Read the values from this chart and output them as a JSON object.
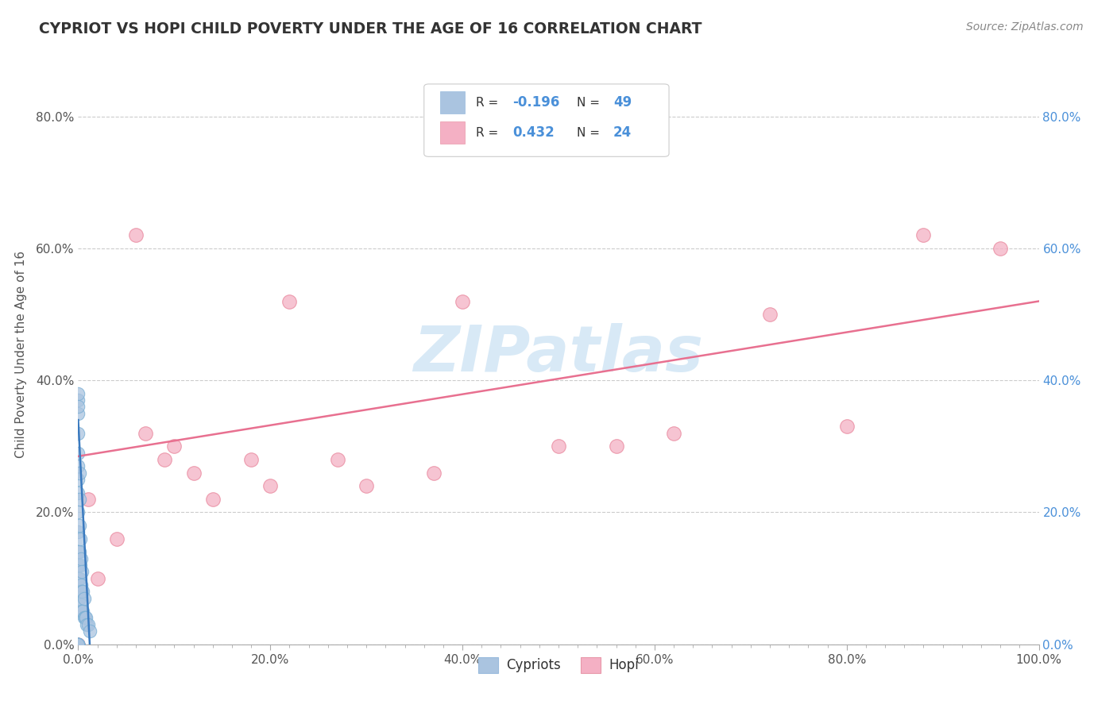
{
  "title": "CYPRIOT VS HOPI CHILD POVERTY UNDER THE AGE OF 16 CORRELATION CHART",
  "source": "Source: ZipAtlas.com",
  "ylabel": "Child Poverty Under the Age of 16",
  "watermark": "ZIPatlas",
  "xlim": [
    0.0,
    1.0
  ],
  "ylim": [
    0.0,
    0.88
  ],
  "xtick_labels": [
    "0.0%",
    "",
    "",
    "",
    "",
    "",
    "",
    "",
    "",
    "",
    "20.0%",
    "",
    "",
    "",
    "",
    "",
    "",
    "",
    "",
    "",
    "40.0%",
    "",
    "",
    "",
    "",
    "",
    "",
    "",
    "",
    "",
    "60.0%",
    "",
    "",
    "",
    "",
    "",
    "",
    "",
    "",
    "",
    "80.0%",
    "",
    "",
    "",
    "",
    "",
    "",
    "",
    "",
    "",
    "100.0%"
  ],
  "xtick_vals": [
    0.0,
    0.02,
    0.04,
    0.06,
    0.08,
    0.1,
    0.12,
    0.14,
    0.16,
    0.18,
    0.2,
    0.22,
    0.24,
    0.26,
    0.28,
    0.3,
    0.32,
    0.34,
    0.36,
    0.38,
    0.4,
    0.42,
    0.44,
    0.46,
    0.48,
    0.5,
    0.52,
    0.54,
    0.56,
    0.58,
    0.6,
    0.62,
    0.64,
    0.66,
    0.68,
    0.7,
    0.72,
    0.74,
    0.76,
    0.78,
    0.8,
    0.82,
    0.84,
    0.86,
    0.88,
    0.9,
    0.92,
    0.94,
    0.96,
    0.98,
    1.0
  ],
  "ytick_labels": [
    "0.0%",
    "20.0%",
    "40.0%",
    "60.0%",
    "80.0%"
  ],
  "ytick_vals": [
    0.0,
    0.2,
    0.4,
    0.6,
    0.8
  ],
  "cypriot_color": "#aac4e0",
  "hopi_color": "#f4b0c4",
  "cypriot_edge_color": "#7aafd4",
  "hopi_edge_color": "#e8849a",
  "cypriot_line_color": "#3a7abf",
  "hopi_line_color": "#e87090",
  "grid_color": "#cccccc",
  "R_cypriot": -0.196,
  "N_cypriot": 49,
  "R_hopi": 0.432,
  "N_hopi": 24,
  "legend_color": "#4a90d9",
  "cypriot_scatter_x": [
    0.0,
    0.0,
    0.0,
    0.0,
    0.0,
    0.0,
    0.0,
    0.0,
    0.0,
    0.0,
    0.0,
    0.0,
    0.0,
    0.0,
    0.0,
    0.0,
    0.0,
    0.0,
    0.0,
    0.0,
    0.0,
    0.0,
    0.0,
    0.0,
    0.001,
    0.001,
    0.001,
    0.001,
    0.001,
    0.001,
    0.002,
    0.002,
    0.002,
    0.002,
    0.003,
    0.003,
    0.003,
    0.004,
    0.004,
    0.004,
    0.005,
    0.005,
    0.006,
    0.006,
    0.007,
    0.008,
    0.009,
    0.01,
    0.012
  ],
  "cypriot_scatter_y": [
    0.0,
    0.0,
    0.0,
    0.0,
    0.0,
    0.0,
    0.0,
    0.0,
    0.0,
    0.08,
    0.1,
    0.12,
    0.14,
    0.17,
    0.2,
    0.23,
    0.25,
    0.27,
    0.29,
    0.32,
    0.35,
    0.37,
    0.38,
    0.36,
    0.07,
    0.1,
    0.14,
    0.18,
    0.22,
    0.26,
    0.05,
    0.08,
    0.12,
    0.16,
    0.06,
    0.09,
    0.13,
    0.05,
    0.08,
    0.11,
    0.05,
    0.08,
    0.04,
    0.07,
    0.04,
    0.04,
    0.03,
    0.03,
    0.02
  ],
  "hopi_scatter_x": [
    0.0,
    0.01,
    0.02,
    0.04,
    0.06,
    0.07,
    0.09,
    0.1,
    0.12,
    0.14,
    0.18,
    0.2,
    0.22,
    0.27,
    0.3,
    0.37,
    0.4,
    0.5,
    0.56,
    0.62,
    0.72,
    0.8,
    0.88,
    0.96
  ],
  "hopi_scatter_y": [
    0.0,
    0.22,
    0.1,
    0.16,
    0.62,
    0.32,
    0.28,
    0.3,
    0.26,
    0.22,
    0.28,
    0.24,
    0.52,
    0.28,
    0.24,
    0.26,
    0.52,
    0.3,
    0.3,
    0.32,
    0.5,
    0.33,
    0.62,
    0.6
  ],
  "hopi_trend_x": [
    0.0,
    1.0
  ],
  "hopi_trend_y": [
    0.285,
    0.52
  ],
  "cypriot_trend_x": [
    0.0,
    0.012
  ],
  "cypriot_trend_y": [
    0.34,
    0.0
  ]
}
